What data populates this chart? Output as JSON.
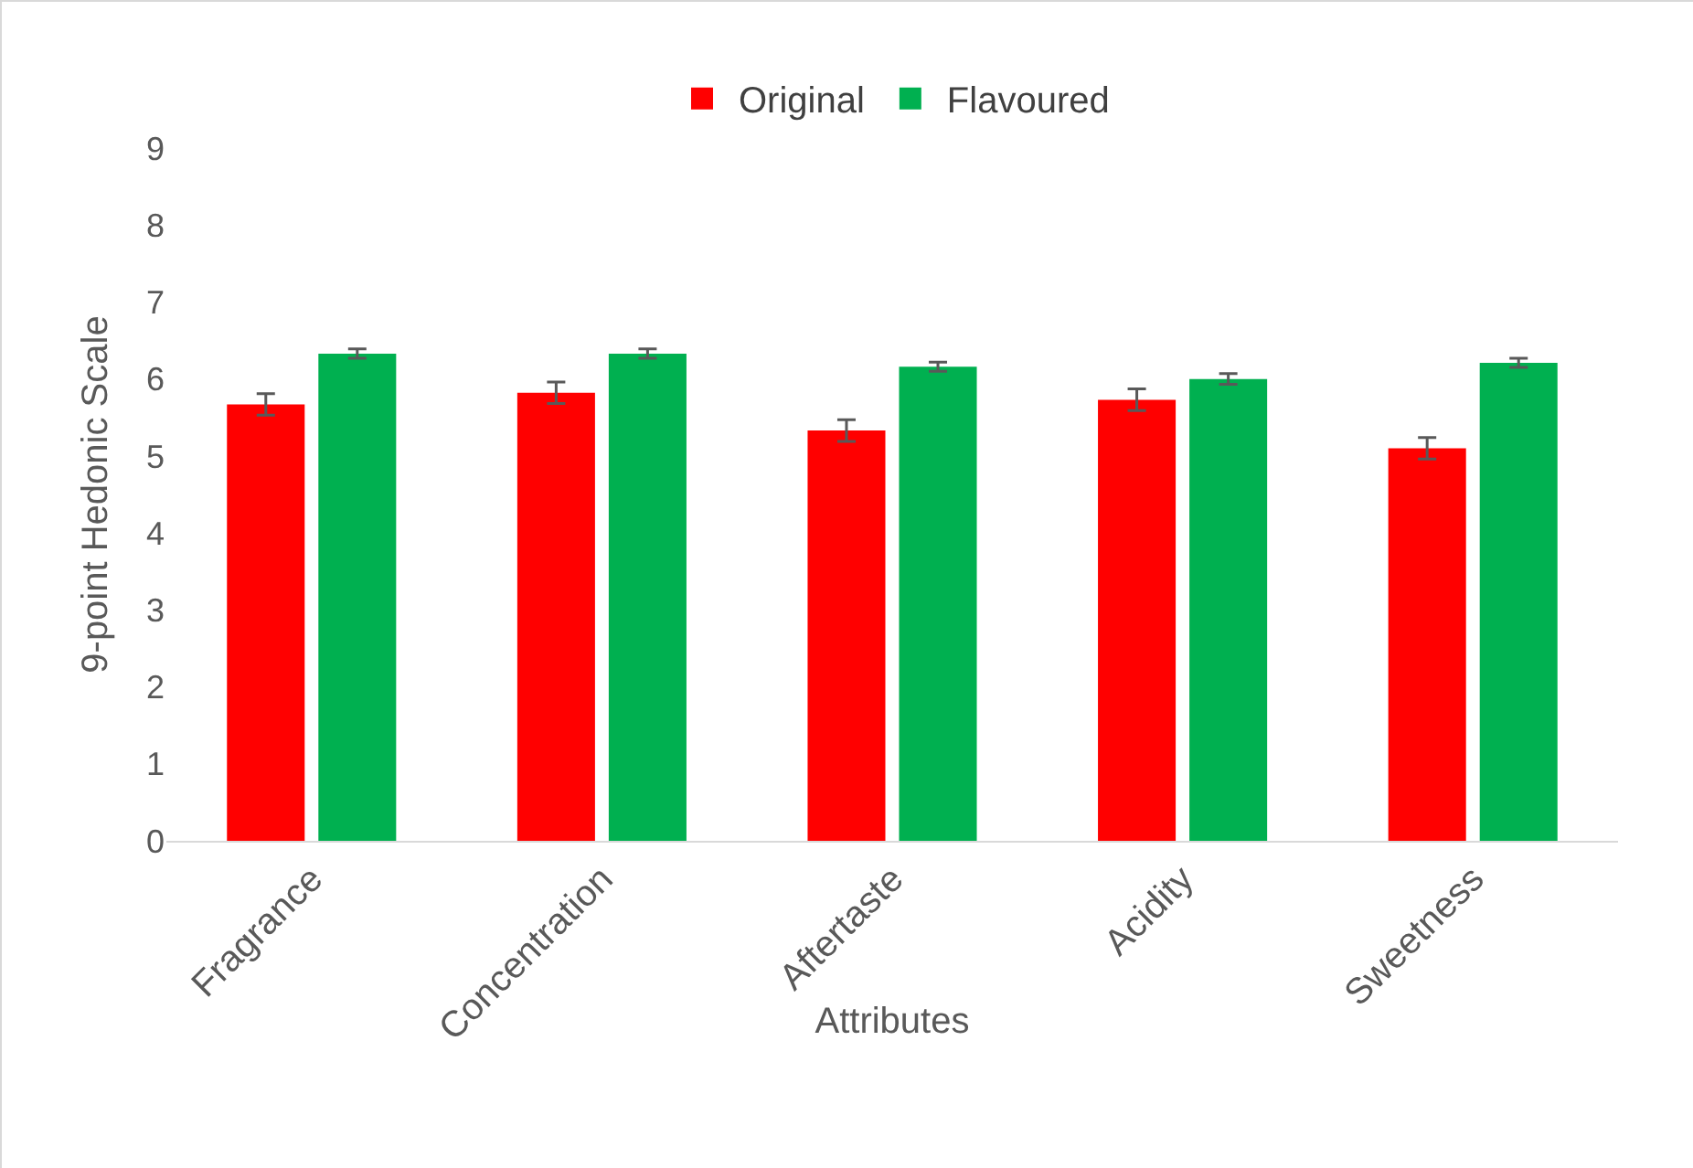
{
  "chart_data": {
    "type": "bar",
    "xlabel": "Attributes",
    "ylabel": "9-point Hedonic Scale",
    "categories": [
      "Fragrance",
      "Concentration",
      "Aftertaste",
      "Acidity",
      "Sweetness"
    ],
    "series": [
      {
        "name": "Original",
        "color": "#ff0000",
        "values": [
          5.67,
          5.82,
          5.33,
          5.73,
          5.1
        ],
        "errors": [
          0.14,
          0.14,
          0.14,
          0.14,
          0.14
        ]
      },
      {
        "name": "Flavoured",
        "color": "#00b050",
        "values": [
          6.33,
          6.33,
          6.16,
          6.0,
          6.21
        ],
        "errors": [
          0.06,
          0.06,
          0.06,
          0.07,
          0.06
        ]
      }
    ],
    "ylim": [
      0,
      9
    ],
    "yticks": [
      0,
      1,
      2,
      3,
      4,
      5,
      6,
      7,
      8,
      9
    ],
    "grid": false,
    "legend": "top"
  }
}
